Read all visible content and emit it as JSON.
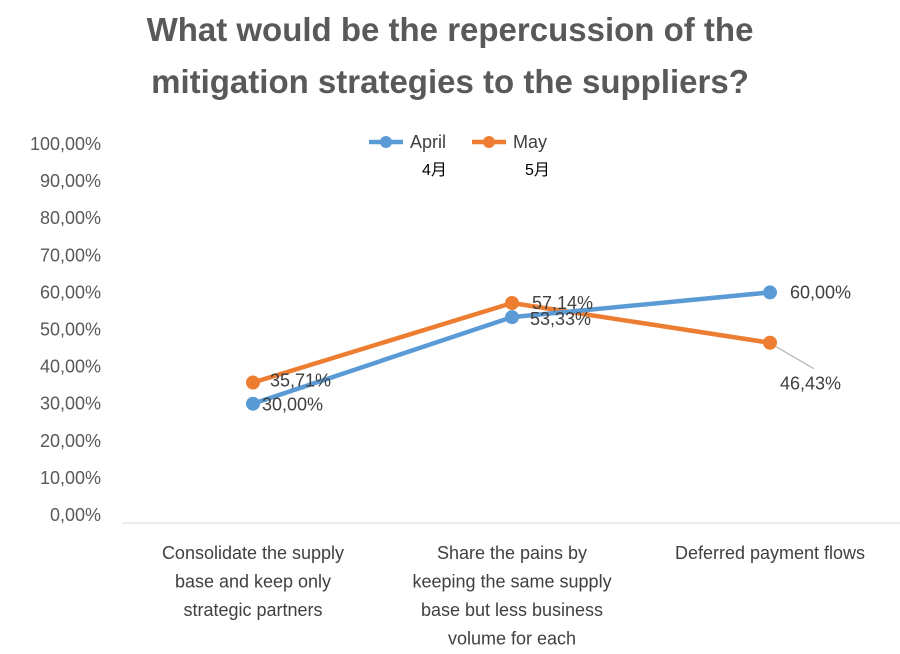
{
  "chart_data": {
    "type": "line",
    "title_line1": "What would be the repercussion of the",
    "title_line2": "mitigation strategies to the suppliers?",
    "categories": [
      [
        "Consolidate the supply",
        "base and keep only",
        "strategic partners"
      ],
      [
        "Share the pains by",
        "keeping the same supply",
        "base but less business",
        "volume for each"
      ],
      [
        "Deferred payment flows"
      ]
    ],
    "series": [
      {
        "name": "April",
        "sub": "4月",
        "color": "#5B9BD5",
        "values": [
          30.0,
          53.33,
          60.0
        ],
        "labels": [
          "30,00%",
          "53,33%",
          "60,00%"
        ]
      },
      {
        "name": "May",
        "sub": "5月",
        "color": "#ED7D31",
        "values": [
          35.71,
          57.14,
          46.43
        ],
        "labels": [
          "35,71%",
          "57,14%",
          "46,43%"
        ]
      }
    ],
    "ylim": [
      0,
      100
    ],
    "yticks": [
      "0,00%",
      "10,00%",
      "20,00%",
      "30,00%",
      "40,00%",
      "50,00%",
      "60,00%",
      "70,00%",
      "80,00%",
      "90,00%",
      "100,00%"
    ],
    "legend_position": "top",
    "grid": false
  }
}
